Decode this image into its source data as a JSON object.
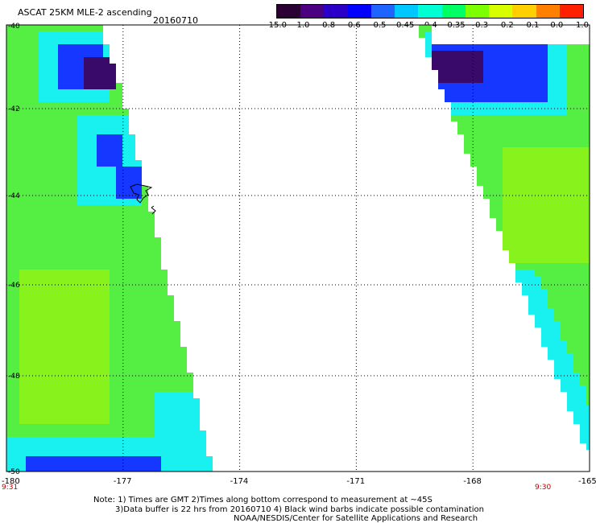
{
  "header": {
    "title": "ASCAT 25KM MLE-2 ascending",
    "date": "20160710"
  },
  "colorbar": {
    "labels": [
      "-15.0",
      "-1.0",
      "-0.8",
      "-0.6",
      "-0.5",
      "-0.45",
      "-0.4",
      "-0.35",
      "-0.3",
      "-0.2",
      "-0.1",
      "0.0",
      "1.0"
    ],
    "colors": [
      "#2b0033",
      "#4b0082",
      "#2a00c8",
      "#0000ff",
      "#1e64ff",
      "#00c8ff",
      "#00ffd2",
      "#00ff64",
      "#7cff00",
      "#d8ff00",
      "#ffd000",
      "#ff8000",
      "#ff2000"
    ]
  },
  "map": {
    "lon_ticks": [
      "-180",
      "-177",
      "-174",
      "-171",
      "-168",
      "-165"
    ],
    "lat_ticks": [
      "-40",
      "-42",
      "-44",
      "-46",
      "-48",
      "-50"
    ],
    "time_left": "9:31",
    "time_right": "9:30",
    "swath_colors": {
      "green": "#55ef44",
      "lime": "#88f21c",
      "cyan": "#19f0f0",
      "blue": "#1637ff",
      "navy": "#2a17c8",
      "purple": "#3a0a6a"
    }
  },
  "notes": {
    "line1": "Note: 1) Times are GMT 2)Times along bottom correspond to measurement at ~45S",
    "line2": "3)Data buffer is 22 hrs from 20160710 4) Black wind barbs indicate possible contamination",
    "line3": "NOAA/NESDIS/Center for Satellite Applications and Research"
  }
}
